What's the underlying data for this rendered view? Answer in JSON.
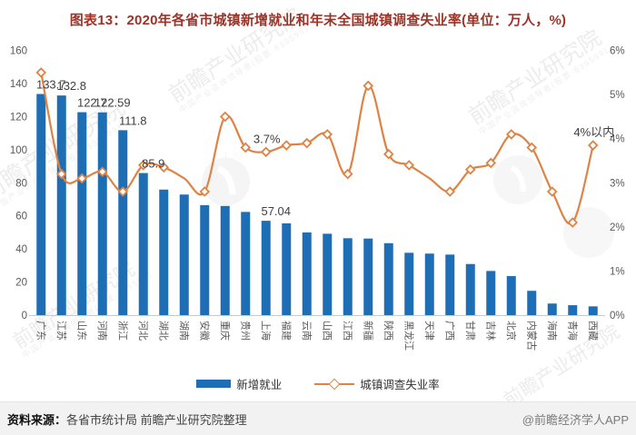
{
  "title": "图表13：2020年各省市城镇新增就业和年末全国城镇调查失业率(单位：万人，%)",
  "legend": [
    {
      "label": "新增就业",
      "type": "bar",
      "color": "#1e6eb5"
    },
    {
      "label": "城镇调查失业率",
      "type": "line",
      "color": "#de8344"
    }
  ],
  "chart_data": {
    "type": "bar+line",
    "title": "2020年各省市城镇新增就业和年末全国城镇调查失业率",
    "units": {
      "bar": "万人",
      "line": "%"
    },
    "categories": [
      "广东",
      "江苏",
      "山东",
      "河南",
      "浙江",
      "河北",
      "湖北",
      "湖南",
      "安徽",
      "重庆",
      "贵州",
      "上海",
      "福建",
      "云南",
      "山西",
      "江西",
      "新疆",
      "陕西",
      "黑龙江",
      "天津",
      "广西",
      "甘肃",
      "吉林",
      "北京",
      "内蒙古",
      "海南",
      "青海",
      "西藏"
    ],
    "series": [
      {
        "name": "新增就业",
        "type": "bar",
        "axis": "left",
        "unit": "万人",
        "color": "#1e6eb5",
        "values": [
          133.7,
          132.8,
          122.7,
          122.59,
          111.8,
          85.9,
          75.9,
          72.9,
          66.5,
          66,
          62.4,
          57.04,
          55.5,
          50,
          49.2,
          46.5,
          46.3,
          43.5,
          37.7,
          37.2,
          36.6,
          30.9,
          26.7,
          23.6,
          14.7,
          7,
          6,
          5.3
        ],
        "data_labels": {
          "0": "133.7",
          "1": "132.8",
          "2": "122.7",
          "3": "122.59",
          "4": "111.8",
          "5": "85.9",
          "11": "57.04"
        }
      },
      {
        "name": "城镇调查失业率",
        "type": "line",
        "axis": "right",
        "unit": "%",
        "color": "#de8344",
        "values": [
          5.5,
          3.2,
          3.1,
          3.25,
          2.8,
          3.4,
          3.35,
          3.1,
          2.8,
          4.5,
          3.8,
          3.7,
          3.85,
          3.9,
          4.1,
          3.2,
          5.2,
          3.65,
          3.4,
          3.1,
          2.8,
          3.3,
          3.45,
          4.1,
          3.8,
          2.8,
          2.1,
          3.85
        ],
        "data_labels": {
          "11": "3.7%",
          "27": "4%以内"
        },
        "no_marker_indices": [
          7,
          19
        ]
      }
    ],
    "left_axis": {
      "min": 0,
      "max": 160,
      "step": 20
    },
    "right_axis": {
      "min": 0,
      "max": 6,
      "step": 1,
      "suffix": "%"
    },
    "grid": false,
    "legend_position": "bottom"
  },
  "footer": {
    "source_label": "资料来源：",
    "source_text": "各省市统计局 前瞻产业研究院整理",
    "credit": "@前瞻经济学人APP"
  },
  "watermark": {
    "brand": "前瞻产业研究院",
    "tagline": "中国产业咨询领导者(股票·839599)"
  }
}
